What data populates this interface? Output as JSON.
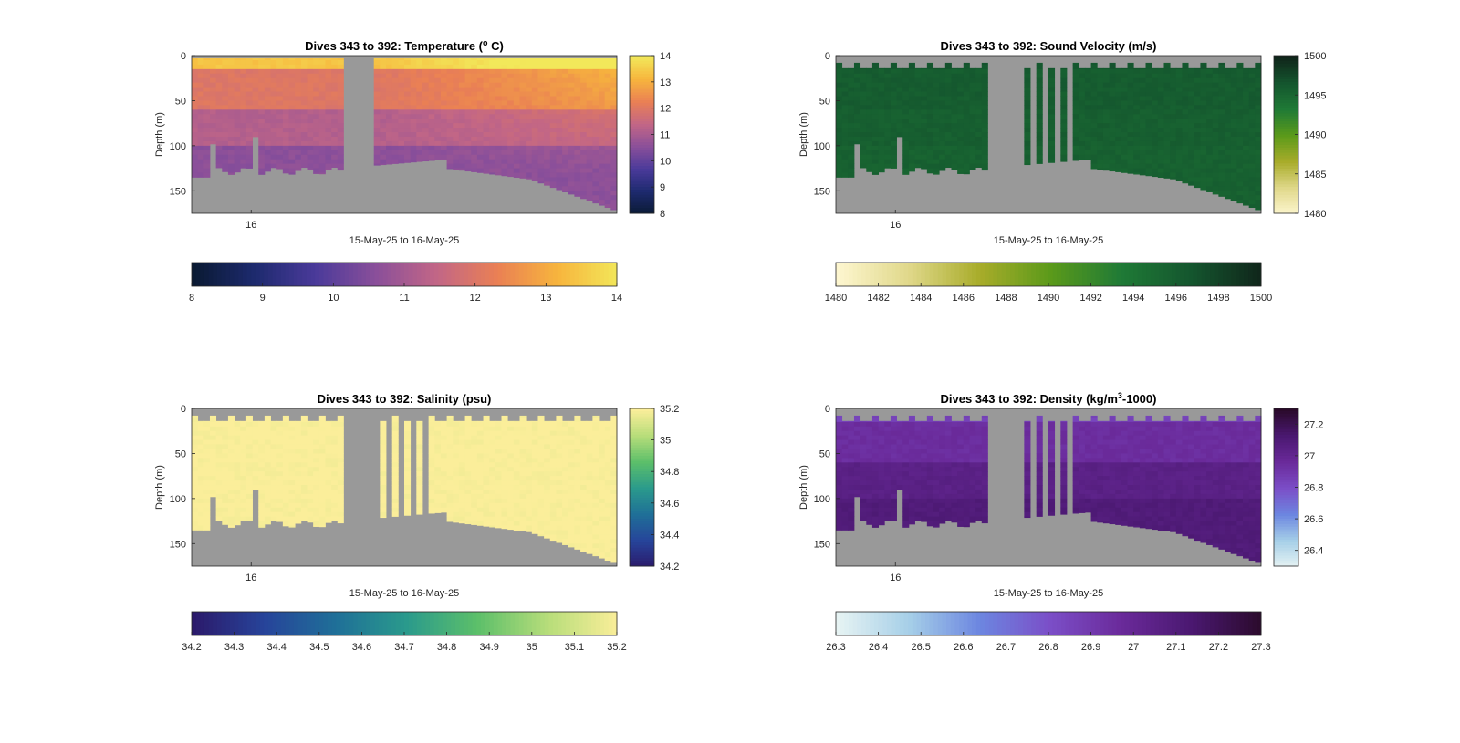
{
  "figure": {
    "background": "#ffffff",
    "nodata_color": "#999999"
  },
  "chart_data": [
    {
      "id": "temperature",
      "type": "heatmap",
      "title": "Dives 343 to 392: Temperature (",
      "title_sup": "o",
      "title_tail": " C)",
      "ylabel": "Depth (m)",
      "xlabel": "15-May-25 to 16-May-25",
      "x_ticks": [
        "16"
      ],
      "x_tick_frac": [
        0.14
      ],
      "y_ticks": [
        "0",
        "50",
        "100",
        "150"
      ],
      "y_tick_values": [
        0,
        50,
        100,
        150
      ],
      "ylim": [
        0,
        175
      ],
      "y_reversed": true,
      "colorbar": {
        "min": 8,
        "max": 14,
        "ticks": [
          "8",
          "9",
          "10",
          "11",
          "12",
          "13",
          "14"
        ],
        "tick_values": [
          8,
          9,
          10,
          11,
          12,
          13,
          14
        ],
        "colors": [
          "#0a1a33",
          "#1d2a6e",
          "#4a3a9a",
          "#8a4f9a",
          "#c26686",
          "#ea8054",
          "#f7b53d",
          "#f2e85a"
        ]
      },
      "h_colorbar": {
        "ticks": [
          "8",
          "9",
          "10",
          "11",
          "12",
          "13",
          "14"
        ],
        "tick_values": [
          8,
          9,
          10,
          11,
          12,
          13,
          14
        ]
      },
      "profile": {
        "num_columns": 70,
        "gap_columns": [
          25,
          26,
          27,
          28,
          29
        ],
        "stripe_columns": [],
        "surface_steps": false
      },
      "data": {
        "surface_value": 13.4,
        "upper_value": 12.0,
        "mid_value": 11.2,
        "deep_value": 10.6,
        "right_side_warm": true
      }
    },
    {
      "id": "sound-velocity",
      "type": "heatmap",
      "title": "Dives 343 to 392: Sound Velocity (m/s)",
      "ylabel": "Depth (m)",
      "xlabel": "15-May-25 to 16-May-25",
      "x_ticks": [
        "16"
      ],
      "x_tick_frac": [
        0.14
      ],
      "y_ticks": [
        "0",
        "50",
        "100",
        "150"
      ],
      "y_tick_values": [
        0,
        50,
        100,
        150
      ],
      "ylim": [
        0,
        175
      ],
      "y_reversed": true,
      "colorbar": {
        "min": 1480,
        "max": 1500,
        "ticks": [
          "1480",
          "1485",
          "1490",
          "1495",
          "1500"
        ],
        "tick_values": [
          1480,
          1485,
          1490,
          1495,
          1500
        ],
        "colors": [
          "#fdf6cf",
          "#e0d88a",
          "#a8ac2a",
          "#5b9a1a",
          "#1f7a36",
          "#14552e",
          "#10241a"
        ]
      },
      "h_colorbar": {
        "ticks": [
          "1480",
          "1482",
          "1484",
          "1486",
          "1488",
          "1490",
          "1492",
          "1494",
          "1496",
          "1498",
          "1500"
        ],
        "tick_values": [
          1480,
          1482,
          1484,
          1486,
          1488,
          1490,
          1492,
          1494,
          1496,
          1498,
          1500
        ]
      },
      "profile": {
        "num_columns": 70,
        "gap_columns": [
          25,
          26,
          27,
          28,
          29,
          30,
          32,
          34,
          36,
          38
        ],
        "stripe_columns": [
          31,
          33,
          35,
          37
        ],
        "surface_steps": true
      },
      "data": {
        "surface_value": 1496.5,
        "upper_value": 1496.0,
        "mid_value": 1495.8,
        "deep_value": 1495.6,
        "right_side_warm": false
      }
    },
    {
      "id": "salinity",
      "type": "heatmap",
      "title": "Dives 343 to 392: Salinity (psu)",
      "ylabel": "Depth (m)",
      "xlabel": "15-May-25 to 16-May-25",
      "x_ticks": [
        "16"
      ],
      "x_tick_frac": [
        0.14
      ],
      "y_ticks": [
        "0",
        "50",
        "100",
        "150"
      ],
      "y_tick_values": [
        0,
        50,
        100,
        150
      ],
      "ylim": [
        0,
        175
      ],
      "y_reversed": true,
      "colorbar": {
        "min": 34.2,
        "max": 35.2,
        "ticks": [
          "34.2",
          "34.4",
          "34.6",
          "34.8",
          "35",
          "35.2"
        ],
        "tick_values": [
          34.2,
          34.4,
          34.6,
          34.8,
          35.0,
          35.2
        ],
        "colors": [
          "#2b1a6b",
          "#27449a",
          "#1f6f98",
          "#2a9a8c",
          "#5cbf6a",
          "#b7dd7a",
          "#fbee9a"
        ]
      },
      "h_colorbar": {
        "ticks": [
          "34.2",
          "34.3",
          "34.4",
          "34.5",
          "34.6",
          "34.7",
          "34.8",
          "34.9",
          "35",
          "35.1",
          "35.2"
        ],
        "tick_values": [
          34.2,
          34.3,
          34.4,
          34.5,
          34.6,
          34.7,
          34.8,
          34.9,
          35.0,
          35.1,
          35.2
        ]
      },
      "profile": {
        "num_columns": 70,
        "gap_columns": [
          25,
          26,
          27,
          28,
          29,
          30,
          32,
          34,
          36,
          38
        ],
        "stripe_columns": [
          31,
          33,
          35,
          37
        ],
        "surface_steps": true
      },
      "data": {
        "surface_value": 35.2,
        "upper_value": 35.2,
        "mid_value": 35.2,
        "deep_value": 35.2,
        "right_side_warm": false
      }
    },
    {
      "id": "density",
      "type": "heatmap",
      "title": "Dives 343 to 392: Density (kg/m",
      "title_sup": "3",
      "title_tail": "-1000)",
      "ylabel": "Depth (m)",
      "xlabel": "15-May-25 to 16-May-25",
      "x_ticks": [
        "16"
      ],
      "x_tick_frac": [
        0.14
      ],
      "y_ticks": [
        "0",
        "50",
        "100",
        "150"
      ],
      "y_tick_values": [
        0,
        50,
        100,
        150
      ],
      "ylim": [
        0,
        175
      ],
      "y_reversed": true,
      "colorbar": {
        "min": 26.3,
        "max": 27.3,
        "ticks": [
          "26.4",
          "26.6",
          "26.8",
          "27",
          "27.2"
        ],
        "tick_values": [
          26.4,
          26.6,
          26.8,
          27.0,
          27.2
        ],
        "colors": [
          "#e6f3f3",
          "#a6cfe8",
          "#6c86e0",
          "#7b4ec7",
          "#6a2a9a",
          "#4a1870",
          "#2a0a2a"
        ]
      },
      "h_colorbar": {
        "ticks": [
          "26.3",
          "26.4",
          "26.5",
          "26.6",
          "26.7",
          "26.8",
          "26.9",
          "27",
          "27.1",
          "27.2",
          "27.3"
        ],
        "tick_values": [
          26.3,
          26.4,
          26.5,
          26.6,
          26.7,
          26.8,
          26.9,
          27.0,
          27.1,
          27.2,
          27.3
        ]
      },
      "profile": {
        "num_columns": 70,
        "gap_columns": [
          25,
          26,
          27,
          28,
          29,
          30,
          32,
          34,
          36,
          38
        ],
        "stripe_columns": [
          31,
          33,
          35,
          37
        ],
        "surface_steps": true
      },
      "data": {
        "surface_value": 26.85,
        "upper_value": 26.95,
        "mid_value": 27.05,
        "deep_value": 27.1,
        "right_side_warm": false
      }
    }
  ]
}
